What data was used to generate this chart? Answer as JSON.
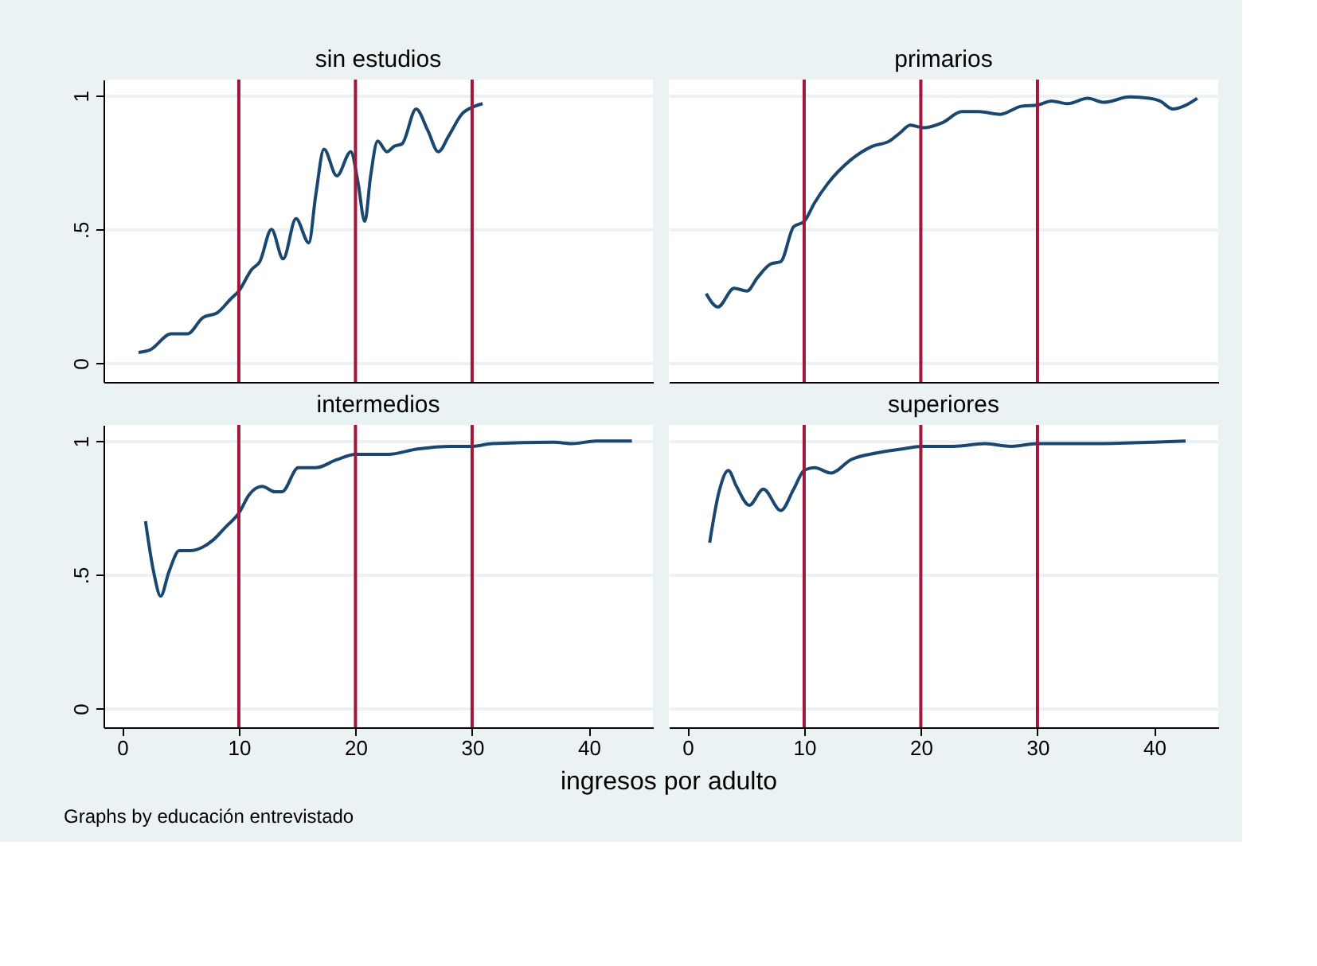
{
  "chart_data": [
    {
      "type": "line",
      "title": "sin estudios",
      "xlim": [
        -1.6,
        45.5
      ],
      "ylim": [
        -0.07,
        1.06
      ],
      "xticks": [
        0,
        10,
        20,
        30,
        40
      ],
      "yticks": [
        0,
        {
          "value": 0.5,
          "label": ".5"
        },
        1
      ],
      "tick_labels": "y",
      "grid": "y",
      "marker": "none",
      "line_style": "solid",
      "ref_lines": [
        {
          "axis": "x",
          "value": 10,
          "color": "#a0173a"
        },
        {
          "axis": "x",
          "value": 20,
          "color": "#a0173a"
        },
        {
          "axis": "x",
          "value": 30,
          "color": "#a0173a"
        }
      ],
      "series": [
        {
          "color": "#1a476f",
          "x": [
            1.4,
            2.4,
            4.2,
            5.6,
            6.9,
            8.2,
            9.3,
            10,
            11.1,
            11.8,
            12.8,
            13.8,
            14.9,
            16,
            16.6,
            17.3,
            18.4,
            19.6,
            20.2,
            20.8,
            21.3,
            21.9,
            22.7,
            23.3,
            24,
            25.2,
            26.2,
            27.1,
            28,
            29.1,
            30.2,
            30.9
          ],
          "values": [
            0.04,
            0.05,
            0.11,
            0.11,
            0.17,
            0.19,
            0.24,
            0.27,
            0.35,
            0.38,
            0.5,
            0.39,
            0.54,
            0.45,
            0.63,
            0.8,
            0.7,
            0.79,
            0.68,
            0.53,
            0.7,
            0.83,
            0.79,
            0.81,
            0.82,
            0.95,
            0.87,
            0.79,
            0.85,
            0.93,
            0.96,
            0.97
          ]
        }
      ]
    },
    {
      "type": "line",
      "title": "primarios",
      "xlim": [
        -1.6,
        45.5
      ],
      "ylim": [
        -0.07,
        1.06
      ],
      "xticks": [
        0,
        10,
        20,
        30,
        40
      ],
      "yticks": [
        0,
        0.5,
        1
      ],
      "tick_labels": false,
      "grid": "y",
      "marker": "none",
      "line_style": "solid",
      "ref_lines": [
        {
          "axis": "x",
          "value": 10,
          "color": "#a0173a"
        },
        {
          "axis": "x",
          "value": 20,
          "color": "#a0173a"
        },
        {
          "axis": "x",
          "value": 30,
          "color": "#a0173a"
        }
      ],
      "series": [
        {
          "color": "#1a476f",
          "x": [
            1.6,
            2.6,
            4.0,
            5.1,
            6.0,
            7.1,
            8.0,
            9.1,
            10,
            10.9,
            12,
            14,
            15.8,
            17.3,
            18.2,
            19.1,
            20.2,
            21.9,
            23.5,
            25,
            26.8,
            28.6,
            30,
            31.2,
            32.6,
            34.3,
            35.7,
            37.9,
            39.6,
            40.5,
            41.6,
            42.5,
            43.7
          ],
          "values": [
            0.26,
            0.21,
            0.28,
            0.27,
            0.32,
            0.37,
            0.38,
            0.51,
            0.53,
            0.6,
            0.67,
            0.76,
            0.81,
            0.83,
            0.86,
            0.89,
            0.88,
            0.9,
            0.94,
            0.94,
            0.93,
            0.96,
            0.965,
            0.98,
            0.97,
            0.99,
            0.975,
            0.995,
            0.99,
            0.98,
            0.95,
            0.96,
            0.99
          ]
        }
      ]
    },
    {
      "type": "line",
      "title": "intermedios",
      "xlabel": "ingresos por adulto",
      "annotations": [
        "Graphs by educación entrevistado"
      ],
      "xlim": [
        -1.6,
        45.5
      ],
      "ylim": [
        -0.07,
        1.06
      ],
      "xticks": [
        0,
        10,
        20,
        30,
        40
      ],
      "yticks": [
        0,
        {
          "value": 0.5,
          "label": ".5"
        },
        1
      ],
      "grid": "y",
      "marker": "none",
      "line_style": "solid",
      "ref_lines": [
        {
          "axis": "x",
          "value": 10,
          "color": "#a0173a"
        },
        {
          "axis": "x",
          "value": 20,
          "color": "#a0173a"
        },
        {
          "axis": "x",
          "value": 30,
          "color": "#a0173a"
        }
      ],
      "series": [
        {
          "color": "#1a476f",
          "x": [
            2.0,
            2.7,
            3.3,
            4.0,
            4.9,
            5.8,
            7.8,
            8.9,
            10,
            10.9,
            12,
            13.1,
            13.7,
            15.1,
            16.6,
            18.4,
            20,
            22.8,
            25.3,
            28.2,
            30,
            31.7,
            37,
            38.6,
            40.6,
            43.7
          ],
          "values": [
            0.7,
            0.51,
            0.42,
            0.51,
            0.59,
            0.59,
            0.63,
            0.68,
            0.73,
            0.8,
            0.83,
            0.81,
            0.81,
            0.9,
            0.9,
            0.93,
            0.95,
            0.95,
            0.97,
            0.98,
            0.98,
            0.99,
            0.995,
            0.99,
            1.0,
            1.0
          ]
        }
      ]
    },
    {
      "type": "line",
      "title": "superiores",
      "xlim": [
        -1.6,
        45.5
      ],
      "ylim": [
        -0.07,
        1.06
      ],
      "xticks": [
        0,
        10,
        20,
        30,
        40
      ],
      "yticks": [
        0,
        0.5,
        1
      ],
      "tick_labels": "x",
      "grid": "y",
      "marker": "none",
      "line_style": "solid",
      "ref_lines": [
        {
          "axis": "x",
          "value": 10,
          "color": "#a0173a"
        },
        {
          "axis": "x",
          "value": 20,
          "color": "#a0173a"
        },
        {
          "axis": "x",
          "value": 30,
          "color": "#a0173a"
        }
      ],
      "series": [
        {
          "color": "#1a476f",
          "x": [
            1.9,
            2.7,
            3.5,
            4.2,
            5.3,
            6.5,
            8.0,
            9.1,
            10,
            10.9,
            12.3,
            14,
            16.2,
            18.4,
            20,
            22.8,
            25.5,
            27.7,
            30,
            33.9,
            42.7
          ],
          "values": [
            0.62,
            0.81,
            0.89,
            0.83,
            0.76,
            0.82,
            0.74,
            0.82,
            0.89,
            0.9,
            0.88,
            0.93,
            0.955,
            0.97,
            0.98,
            0.98,
            0.99,
            0.98,
            0.99,
            0.99,
            1.0
          ]
        }
      ]
    }
  ]
}
